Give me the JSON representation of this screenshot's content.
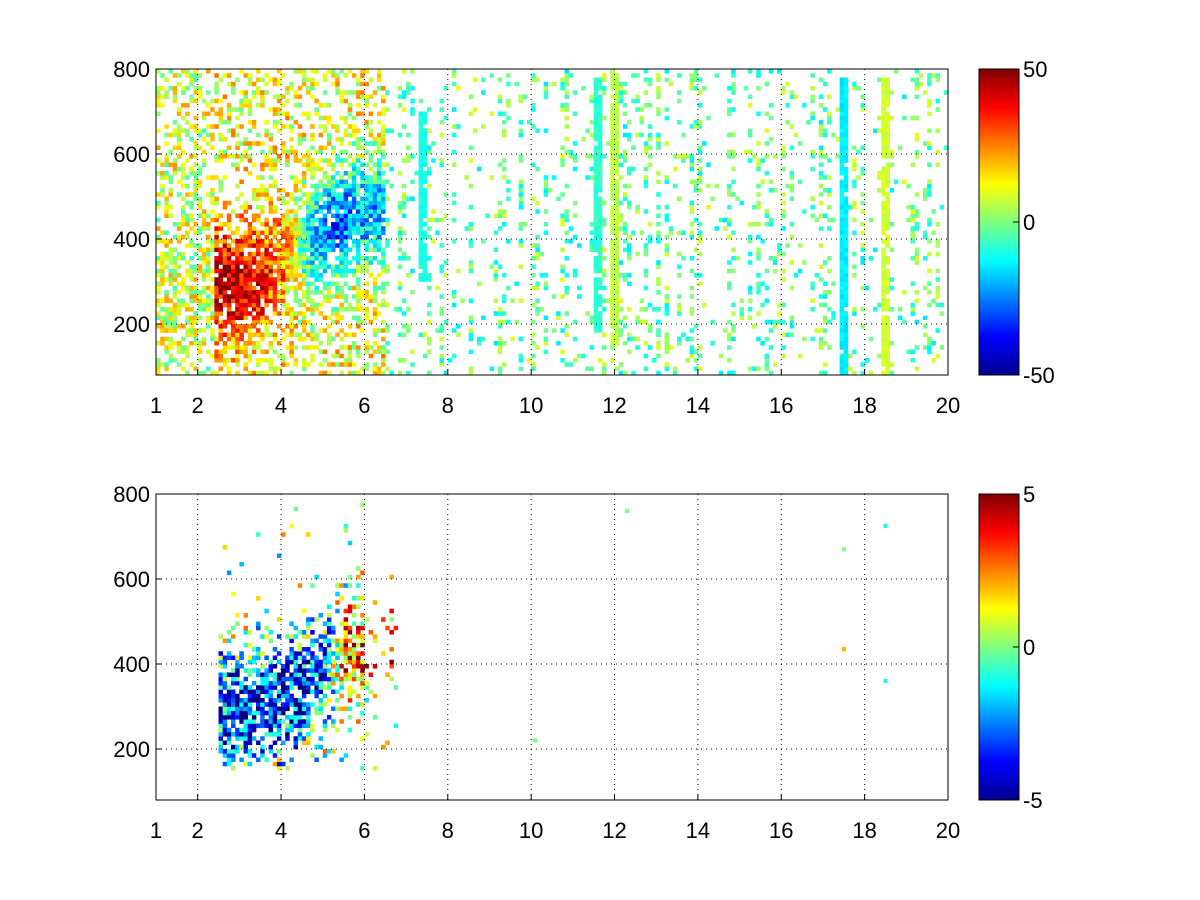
{
  "chart_data": [
    {
      "type": "heatmap",
      "title": "",
      "xlabel": "",
      "ylabel": "",
      "xlim": [
        1,
        20
      ],
      "ylim": [
        80,
        800
      ],
      "xticks": [
        1,
        2,
        4,
        6,
        8,
        10,
        12,
        14,
        16,
        18,
        20
      ],
      "yticks": [
        200,
        400,
        600,
        800
      ],
      "grid": true,
      "colormap": "jet",
      "colorbar": {
        "range": [
          -50,
          50
        ],
        "ticks": [
          -50,
          0,
          50
        ]
      },
      "features": {
        "dense_region": {
          "x_range": [
            1,
            6.5
          ],
          "y_range": [
            80,
            800
          ]
        },
        "ridge": [
          {
            "x": 2.6,
            "y": 300,
            "value": 45
          },
          {
            "x": 3.0,
            "y": 295,
            "value": 45
          },
          {
            "x": 3.4,
            "y": 300,
            "value": 40
          },
          {
            "x": 3.8,
            "y": 330,
            "value": 30
          },
          {
            "x": 4.2,
            "y": 360,
            "value": 20
          },
          {
            "x": 4.6,
            "y": 400,
            "value": -10
          },
          {
            "x": 5.0,
            "y": 420,
            "value": -25
          },
          {
            "x": 5.4,
            "y": 440,
            "value": -30
          },
          {
            "x": 5.8,
            "y": 460,
            "value": -20
          }
        ],
        "sparse_region": {
          "x_range": [
            6.5,
            20
          ],
          "y_range": [
            80,
            800
          ],
          "value_range": [
            -15,
            10
          ]
        },
        "streaks": [
          {
            "x": 7.4,
            "y_range": [
              300,
              700
            ],
            "value": -10
          },
          {
            "x": 11.6,
            "y_range": [
              180,
              780
            ],
            "value": -8
          },
          {
            "x": 12.0,
            "y_range": [
              150,
              800
            ],
            "value": 6
          },
          {
            "x": 17.5,
            "y_range": [
              80,
              780
            ],
            "value": -14
          },
          {
            "x": 18.5,
            "y_range": [
              80,
              780
            ],
            "value": 8
          }
        ]
      }
    },
    {
      "type": "heatmap",
      "title": "",
      "xlabel": "",
      "ylabel": "",
      "xlim": [
        1,
        20
      ],
      "ylim": [
        80,
        800
      ],
      "xticks": [
        1,
        2,
        4,
        6,
        8,
        10,
        12,
        14,
        16,
        18,
        20
      ],
      "yticks": [
        200,
        400,
        600,
        800
      ],
      "grid": true,
      "colormap": "jet",
      "colorbar": {
        "range": [
          -5,
          5
        ],
        "ticks": [
          -5,
          0,
          5
        ]
      },
      "features": {
        "dense_region": {
          "x_range": [
            2.5,
            6.8
          ],
          "y_range": [
            150,
            790
          ]
        },
        "ridge": [
          {
            "x": 2.6,
            "y": 300,
            "value": -3
          },
          {
            "x": 3.2,
            "y": 300,
            "value": -4
          },
          {
            "x": 3.8,
            "y": 310,
            "value": -4
          },
          {
            "x": 4.4,
            "y": 330,
            "value": -4
          },
          {
            "x": 5.0,
            "y": 380,
            "value": -3
          },
          {
            "x": 5.6,
            "y": 430,
            "value": 3
          }
        ],
        "isolated_points": [
          {
            "x": 12.3,
            "y": 760,
            "value": 0
          },
          {
            "x": 17.5,
            "y": 670,
            "value": 0
          },
          {
            "x": 17.5,
            "y": 435,
            "value": 2
          },
          {
            "x": 18.5,
            "y": 725,
            "value": -1
          },
          {
            "x": 18.5,
            "y": 360,
            "value": -1
          },
          {
            "x": 10.1,
            "y": 220,
            "value": 0
          }
        ]
      }
    }
  ]
}
